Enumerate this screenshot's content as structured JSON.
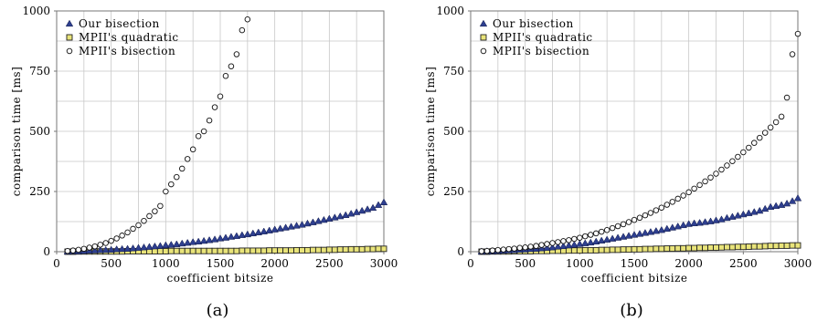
{
  "chart_data": [
    {
      "type": "scatter",
      "panel_label": "(a)",
      "xlabel": "coefficient bitsize",
      "ylabel": "comparison time [ms]",
      "xlim": [
        0,
        3000
      ],
      "ylim": [
        0,
        1000
      ],
      "xticks": [
        0,
        500,
        1000,
        1500,
        2000,
        2500,
        3000
      ],
      "yticks": [
        0,
        250,
        500,
        750,
        1000
      ],
      "grid": true,
      "legend_position": "top-left",
      "series": [
        {
          "name": "Our bisection",
          "marker": "triangle",
          "color": "#2e3f8f",
          "x": [
            100,
            150,
            200,
            250,
            300,
            350,
            400,
            450,
            500,
            550,
            600,
            650,
            700,
            750,
            800,
            850,
            900,
            950,
            1000,
            1050,
            1100,
            1150,
            1200,
            1250,
            1300,
            1350,
            1400,
            1450,
            1500,
            1550,
            1600,
            1650,
            1700,
            1750,
            1800,
            1850,
            1900,
            1950,
            2000,
            2050,
            2100,
            2150,
            2200,
            2250,
            2300,
            2350,
            2400,
            2450,
            2500,
            2550,
            2600,
            2650,
            2700,
            2750,
            2800,
            2850,
            2900,
            2950,
            3000
          ],
          "y": [
            1,
            2,
            2,
            3,
            4,
            5,
            6,
            7,
            8,
            10,
            11,
            12,
            14,
            16,
            18,
            20,
            22,
            24,
            27,
            29,
            31,
            34,
            37,
            40,
            42,
            45,
            48,
            51,
            55,
            58,
            62,
            65,
            69,
            72,
            76,
            80,
            84,
            88,
            92,
            96,
            100,
            104,
            108,
            112,
            117,
            122,
            127,
            132,
            137,
            142,
            147,
            152,
            158,
            164,
            170,
            176,
            182,
            194,
            205
          ]
        },
        {
          "name": "MPII's quadratic",
          "marker": "square",
          "color": "#e9e47a",
          "x": [
            100,
            150,
            200,
            250,
            300,
            350,
            400,
            450,
            500,
            550,
            600,
            650,
            700,
            750,
            800,
            850,
            900,
            950,
            1000,
            1050,
            1100,
            1150,
            1200,
            1250,
            1300,
            1350,
            1400,
            1450,
            1500,
            1550,
            1600,
            1650,
            1700,
            1750,
            1800,
            1850,
            1900,
            1950,
            2000,
            2050,
            2100,
            2150,
            2200,
            2250,
            2300,
            2350,
            2400,
            2450,
            2500,
            2550,
            2600,
            2650,
            2700,
            2750,
            2800,
            2850,
            2900,
            2950,
            3000
          ],
          "y": [
            0,
            0,
            1,
            1,
            1,
            1,
            1,
            1,
            1,
            1,
            1,
            2,
            2,
            2,
            2,
            2,
            2,
            2,
            2,
            3,
            3,
            3,
            3,
            3,
            3,
            3,
            3,
            3,
            3,
            3,
            3,
            3,
            4,
            4,
            4,
            4,
            4,
            5,
            5,
            5,
            5,
            5,
            6,
            6,
            6,
            7,
            7,
            7,
            8,
            8,
            9,
            9,
            10,
            10,
            10,
            11,
            11,
            12,
            12
          ]
        },
        {
          "name": "MPII's bisection",
          "marker": "circle",
          "color": "#ffffff",
          "x": [
            100,
            150,
            200,
            250,
            300,
            350,
            400,
            450,
            500,
            550,
            600,
            650,
            700,
            750,
            800,
            850,
            900,
            950,
            1000,
            1050,
            1100,
            1150,
            1200,
            1250,
            1300,
            1350,
            1400,
            1450,
            1500,
            1550,
            1600,
            1650,
            1700,
            1750
          ],
          "y": [
            3,
            5,
            8,
            12,
            17,
            22,
            29,
            36,
            45,
            55,
            67,
            80,
            95,
            110,
            128,
            148,
            168,
            190,
            250,
            280,
            310,
            345,
            385,
            425,
            480,
            500,
            545,
            600,
            645,
            730,
            770,
            820,
            920,
            965
          ]
        }
      ]
    },
    {
      "type": "scatter",
      "panel_label": "(b)",
      "xlabel": "coefficient bitsize",
      "ylabel": "comparison time [ms]",
      "xlim": [
        0,
        3000
      ],
      "ylim": [
        0,
        1000
      ],
      "xticks": [
        0,
        500,
        1000,
        1500,
        2000,
        2500,
        3000
      ],
      "yticks": [
        0,
        250,
        500,
        750,
        1000
      ],
      "grid": true,
      "legend_position": "top-left",
      "series": [
        {
          "name": "Our bisection",
          "marker": "triangle",
          "color": "#2e3f8f",
          "x": [
            100,
            150,
            200,
            250,
            300,
            350,
            400,
            450,
            500,
            550,
            600,
            650,
            700,
            750,
            800,
            850,
            900,
            950,
            1000,
            1050,
            1100,
            1150,
            1200,
            1250,
            1300,
            1350,
            1400,
            1450,
            1500,
            1550,
            1600,
            1650,
            1700,
            1750,
            1800,
            1850,
            1900,
            1950,
            2000,
            2050,
            2100,
            2150,
            2200,
            2250,
            2300,
            2350,
            2400,
            2450,
            2500,
            2550,
            2600,
            2650,
            2700,
            2750,
            2800,
            2850,
            2900,
            2950,
            3000
          ],
          "y": [
            1,
            2,
            2,
            3,
            4,
            5,
            6,
            8,
            9,
            11,
            12,
            14,
            16,
            18,
            21,
            23,
            26,
            29,
            32,
            35,
            38,
            42,
            46,
            50,
            54,
            58,
            62,
            66,
            70,
            74,
            78,
            82,
            86,
            90,
            95,
            100,
            105,
            110,
            115,
            118,
            120,
            123,
            126,
            130,
            134,
            140,
            145,
            150,
            155,
            160,
            165,
            170,
            178,
            186,
            190,
            194,
            200,
            210,
            222
          ]
        },
        {
          "name": "MPII's quadratic",
          "marker": "square",
          "color": "#e9e47a",
          "x": [
            100,
            150,
            200,
            250,
            300,
            350,
            400,
            450,
            500,
            550,
            600,
            650,
            700,
            750,
            800,
            850,
            900,
            950,
            1000,
            1050,
            1100,
            1150,
            1200,
            1250,
            1300,
            1350,
            1400,
            1450,
            1500,
            1550,
            1600,
            1650,
            1700,
            1750,
            1800,
            1850,
            1900,
            1950,
            2000,
            2050,
            2100,
            2150,
            2200,
            2250,
            2300,
            2350,
            2400,
            2450,
            2500,
            2550,
            2600,
            2650,
            2700,
            2750,
            2800,
            2850,
            2900,
            2950,
            3000
          ],
          "y": [
            0,
            0,
            1,
            1,
            1,
            1,
            2,
            2,
            2,
            2,
            3,
            3,
            3,
            4,
            4,
            4,
            5,
            5,
            5,
            6,
            6,
            6,
            7,
            7,
            8,
            8,
            9,
            9,
            10,
            10,
            11,
            11,
            12,
            12,
            13,
            13,
            14,
            14,
            15,
            15,
            16,
            16,
            17,
            17,
            18,
            19,
            19,
            20,
            20,
            21,
            22,
            22,
            23,
            24,
            24,
            25,
            25,
            26,
            26
          ]
        },
        {
          "name": "MPII's bisection",
          "marker": "circle",
          "color": "#ffffff",
          "x": [
            100,
            150,
            200,
            250,
            300,
            350,
            400,
            450,
            500,
            550,
            600,
            650,
            700,
            750,
            800,
            850,
            900,
            950,
            1000,
            1050,
            1100,
            1150,
            1200,
            1250,
            1300,
            1350,
            1400,
            1450,
            1500,
            1550,
            1600,
            1650,
            1700,
            1750,
            1800,
            1850,
            1900,
            1950,
            2000,
            2050,
            2100,
            2150,
            2200,
            2250,
            2300,
            2350,
            2400,
            2450,
            2500,
            2550,
            2600,
            2650,
            2700,
            2750,
            2800,
            2850,
            2900,
            2950,
            3000
          ],
          "y": [
            2,
            3,
            5,
            7,
            9,
            11,
            13,
            16,
            18,
            21,
            24,
            28,
            32,
            36,
            40,
            44,
            48,
            53,
            58,
            64,
            70,
            76,
            83,
            90,
            98,
            106,
            114,
            123,
            132,
            141,
            151,
            161,
            172,
            183,
            195,
            207,
            220,
            233,
            247,
            262,
            277,
            292,
            308,
            324,
            341,
            358,
            376,
            394,
            413,
            432,
            452,
            473,
            494,
            516,
            538,
            561,
            640,
            820,
            905
          ]
        }
      ]
    }
  ]
}
